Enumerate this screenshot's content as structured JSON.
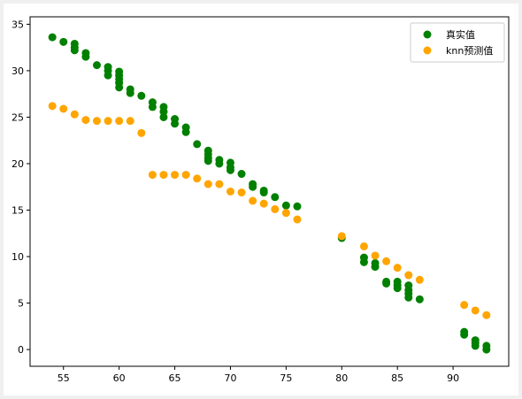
{
  "chart_data": {
    "type": "scatter",
    "title": "",
    "xlabel": "",
    "ylabel": "",
    "xlim": [
      52.0,
      95.0
    ],
    "ylim": [
      -1.8,
      35.8
    ],
    "x_ticks": [
      55,
      60,
      65,
      70,
      75,
      80,
      85,
      90
    ],
    "y_ticks": [
      0,
      5,
      10,
      15,
      20,
      25,
      30,
      35
    ],
    "grid": false,
    "legend_position": "top-right",
    "series": [
      {
        "name": "真实值",
        "color": "#008000",
        "points": [
          [
            54,
            33.6
          ],
          [
            55,
            33.1
          ],
          [
            56,
            32.9
          ],
          [
            56,
            32.5
          ],
          [
            56,
            32.2
          ],
          [
            57,
            31.9
          ],
          [
            57,
            31.5
          ],
          [
            58,
            30.6
          ],
          [
            59,
            30.4
          ],
          [
            59,
            30.0
          ],
          [
            59,
            29.5
          ],
          [
            60,
            29.9
          ],
          [
            60,
            29.5
          ],
          [
            60,
            29.1
          ],
          [
            60,
            28.7
          ],
          [
            60,
            28.2
          ],
          [
            61,
            28.0
          ],
          [
            61,
            27.6
          ],
          [
            62,
            27.3
          ],
          [
            63,
            26.6
          ],
          [
            63,
            26.1
          ],
          [
            64,
            26.1
          ],
          [
            64,
            25.6
          ],
          [
            64,
            25.0
          ],
          [
            65,
            24.8
          ],
          [
            65,
            24.3
          ],
          [
            66,
            23.9
          ],
          [
            66,
            23.4
          ],
          [
            67,
            22.1
          ],
          [
            68,
            21.4
          ],
          [
            68,
            21.0
          ],
          [
            68,
            20.6
          ],
          [
            68,
            20.3
          ],
          [
            69,
            20.4
          ],
          [
            69,
            20.0
          ],
          [
            70,
            20.1
          ],
          [
            70,
            19.6
          ],
          [
            70,
            19.3
          ],
          [
            71,
            18.9
          ],
          [
            72,
            17.8
          ],
          [
            72,
            17.5
          ],
          [
            73,
            17.1
          ],
          [
            73,
            16.9
          ],
          [
            74,
            16.4
          ],
          [
            75,
            15.5
          ],
          [
            76,
            15.4
          ],
          [
            80,
            12.0
          ],
          [
            82,
            9.9
          ],
          [
            82,
            9.4
          ],
          [
            83,
            9.3
          ],
          [
            83,
            8.9
          ],
          [
            84,
            7.3
          ],
          [
            84,
            7.1
          ],
          [
            85,
            7.3
          ],
          [
            85,
            6.9
          ],
          [
            85,
            6.6
          ],
          [
            86,
            6.9
          ],
          [
            86,
            6.4
          ],
          [
            86,
            6.0
          ],
          [
            86,
            5.6
          ],
          [
            87,
            5.4
          ],
          [
            91,
            1.9
          ],
          [
            91,
            1.6
          ],
          [
            92,
            1.0
          ],
          [
            92,
            0.7
          ],
          [
            92,
            0.4
          ],
          [
            93,
            0.4
          ],
          [
            93,
            0.0
          ]
        ]
      },
      {
        "name": "knn预测值",
        "color": "#ffa500",
        "points": [
          [
            54,
            26.2
          ],
          [
            55,
            25.9
          ],
          [
            56,
            25.3
          ],
          [
            57,
            24.7
          ],
          [
            58,
            24.6
          ],
          [
            59,
            24.6
          ],
          [
            60,
            24.6
          ],
          [
            61,
            24.6
          ],
          [
            62,
            23.3
          ],
          [
            63,
            18.8
          ],
          [
            64,
            18.8
          ],
          [
            65,
            18.8
          ],
          [
            66,
            18.8
          ],
          [
            67,
            18.4
          ],
          [
            68,
            17.8
          ],
          [
            69,
            17.8
          ],
          [
            70,
            17.0
          ],
          [
            71,
            16.9
          ],
          [
            72,
            16.0
          ],
          [
            73,
            15.7
          ],
          [
            74,
            15.1
          ],
          [
            75,
            14.7
          ],
          [
            76,
            14.0
          ],
          [
            80,
            12.2
          ],
          [
            82,
            11.1
          ],
          [
            83,
            10.1
          ],
          [
            84,
            9.5
          ],
          [
            85,
            8.8
          ],
          [
            86,
            8.0
          ],
          [
            87,
            7.5
          ],
          [
            91,
            4.8
          ],
          [
            92,
            4.2
          ],
          [
            93,
            3.7
          ]
        ]
      }
    ]
  }
}
